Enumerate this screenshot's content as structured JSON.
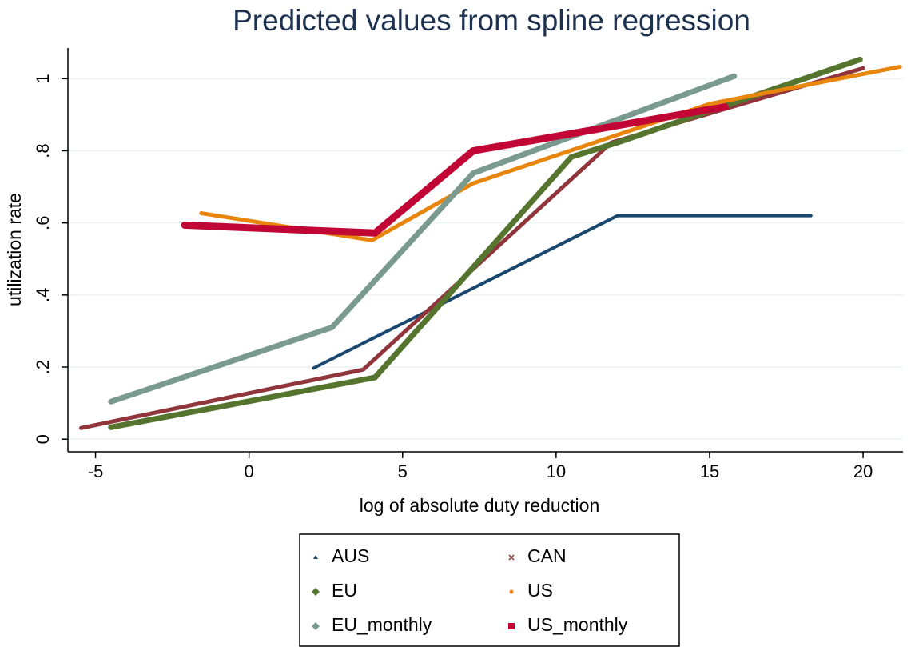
{
  "chart_data": {
    "type": "line",
    "title": "Predicted values from spline regression",
    "x_label": "log of absolute duty reduction",
    "y_label": "utilization rate",
    "xlim": [
      -5.9,
      21.3
    ],
    "ylim": [
      -0.035,
      1.085
    ],
    "xticks": [
      -5,
      0,
      5,
      10,
      15,
      20
    ],
    "yticks": [
      0,
      {
        "value": 0.2,
        "label": ".2"
      },
      {
        "value": 0.4,
        "label": ".4"
      },
      {
        "value": 0.6,
        "label": ".6"
      },
      {
        "value": 0.8,
        "label": ".8"
      },
      1
    ],
    "grid": true,
    "legend": "bottom",
    "series": [
      {
        "name": "AUS",
        "color": "#1a476f",
        "marker": "triangle",
        "x": [
          2.1,
          12,
          18.3
        ],
        "values": [
          0.197,
          0.62,
          0.62
        ]
      },
      {
        "name": "CAN",
        "color": "#90353b",
        "marker": "x",
        "x": [
          -5.47,
          3.72,
          11.8,
          20
        ],
        "values": [
          0.031,
          0.193,
          0.823,
          1.029
        ]
      },
      {
        "name": "EU",
        "color": "#55752f",
        "marker": "diamond",
        "x": [
          -4.5,
          4.1,
          10.5,
          12,
          19.9
        ],
        "values": [
          0.033,
          0.171,
          0.783,
          0.823,
          1.053
        ]
      },
      {
        "name": "US",
        "color": "#e8850d",
        "marker": "dot",
        "x": [
          -1.56,
          4.0,
          7.3,
          15,
          21.2
        ],
        "values": [
          0.627,
          0.552,
          0.71,
          0.93,
          1.033
        ]
      },
      {
        "name": "EU_monthly",
        "color": "#7b9a8f",
        "marker": "diamond",
        "x": [
          -4.5,
          2.7,
          7.3,
          15.8
        ],
        "values": [
          0.104,
          0.31,
          0.738,
          1.007
        ]
      },
      {
        "name": "US_monthly",
        "color": "#c10534",
        "marker": "square",
        "x": [
          -2.1,
          4.1,
          7.3,
          15.5
        ],
        "values": [
          0.594,
          0.572,
          0.8,
          0.922
        ]
      }
    ]
  }
}
